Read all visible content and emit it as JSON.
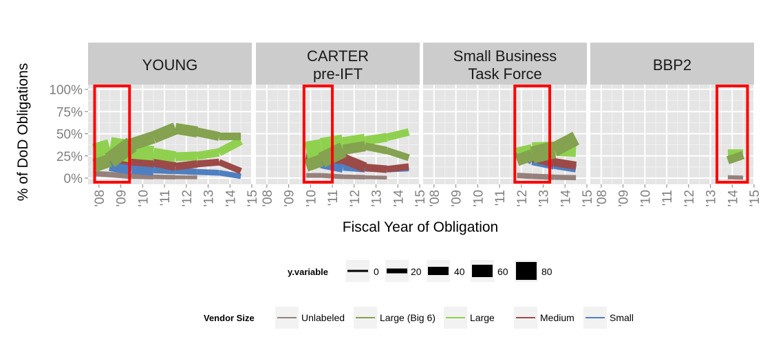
{
  "chart_data": {
    "type": "line",
    "ylabel": "% of DoD Obligations",
    "xlabel": "Fiscal Year of Obligation",
    "ylim": [
      0,
      1
    ],
    "y_ticks": [
      0,
      0.25,
      0.5,
      0.75,
      1
    ],
    "y_tick_labels": [
      "0%",
      "25%",
      "50%",
      "75%",
      "100%"
    ],
    "x_range": [
      2007.5,
      2015
    ],
    "x_ticks": [
      2008,
      2009,
      2010,
      2011,
      2012,
      2013,
      2014,
      2015
    ],
    "x_tick_labels": [
      "'08",
      "'09",
      "'10",
      "'11",
      "'12",
      "'13",
      "'14",
      "'15"
    ],
    "grid": true,
    "colors": {
      "Unlabeled": "#96807b",
      "Large (Big 6)": "#84a24f",
      "Large": "#8fd14f",
      "Medium": "#9c4a48",
      "Small": "#4e7fc1"
    },
    "panels": [
      {
        "strip": [
          "YOUNG"
        ],
        "highlight": [
          2007.8,
          2009.4
        ],
        "series": [
          {
            "name": "Unlabeled",
            "points": [
              [
                2007.8,
                0.05,
                8
              ],
              [
                2008.5,
                0.04,
                8
              ],
              [
                2009.5,
                0.02,
                8
              ],
              [
                2010.5,
                0.015,
                7
              ],
              [
                2011.5,
                0.01,
                6
              ],
              [
                2012.5,
                0.008,
                5
              ]
            ]
          },
          {
            "name": "Small",
            "points": [
              [
                2008.5,
                0.15,
                15
              ],
              [
                2009.5,
                0.11,
                22
              ],
              [
                2010.5,
                0.09,
                10
              ],
              [
                2011.5,
                0.08,
                9
              ],
              [
                2012.5,
                0.07,
                9
              ],
              [
                2013.5,
                0.06,
                8
              ],
              [
                2014.5,
                0.02,
                8
              ]
            ]
          },
          {
            "name": "Medium",
            "points": [
              [
                2007.8,
                0.25,
                14
              ],
              [
                2008.5,
                0.24,
                14
              ],
              [
                2009.5,
                0.2,
                16
              ],
              [
                2010.5,
                0.18,
                14
              ],
              [
                2011.5,
                0.13,
                12
              ],
              [
                2012.5,
                0.16,
                10
              ],
              [
                2013.5,
                0.18,
                10
              ],
              [
                2014.5,
                0.08,
                8
              ]
            ]
          },
          {
            "name": "Large",
            "points": [
              [
                2007.8,
                0.29,
                12
              ],
              [
                2008.5,
                0.34,
                40
              ],
              [
                2009.5,
                0.3,
                24
              ],
              [
                2010.5,
                0.28,
                18
              ],
              [
                2011.5,
                0.24,
                14
              ],
              [
                2012.5,
                0.25,
                12
              ],
              [
                2013.5,
                0.29,
                12
              ],
              [
                2014.5,
                0.42,
                12
              ]
            ]
          },
          {
            "name": "Large (Big 6)",
            "points": [
              [
                2007.8,
                0.14,
                8
              ],
              [
                2008.5,
                0.2,
                30
              ],
              [
                2009.5,
                0.38,
                18
              ],
              [
                2010.5,
                0.46,
                18
              ],
              [
                2011.5,
                0.56,
                18
              ],
              [
                2012.5,
                0.52,
                14
              ],
              [
                2013.5,
                0.47,
                12
              ],
              [
                2014.5,
                0.47,
                10
              ]
            ]
          }
        ]
      },
      {
        "strip": [
          "CARTER",
          "pre-IFT"
        ],
        "highlight": [
          2009.7,
          2011.0
        ],
        "series": [
          {
            "name": "Unlabeled",
            "points": [
              [
                2009.8,
                0.03,
                7
              ],
              [
                2010.5,
                0.03,
                7
              ],
              [
                2011.5,
                0.015,
                7
              ],
              [
                2012.5,
                0.01,
                6
              ],
              [
                2013.5,
                0.005,
                5
              ]
            ]
          },
          {
            "name": "Small",
            "points": [
              [
                2009.8,
                0.24,
                10
              ],
              [
                2010.5,
                0.18,
                22
              ],
              [
                2011.5,
                0.13,
                14
              ],
              [
                2012.5,
                0.11,
                10
              ],
              [
                2013.5,
                0.1,
                9
              ],
              [
                2014.5,
                0.11,
                9
              ]
            ]
          },
          {
            "name": "Medium",
            "points": [
              [
                2009.8,
                0.26,
                14
              ],
              [
                2010.5,
                0.24,
                14
              ],
              [
                2011.5,
                0.22,
                18
              ],
              [
                2012.5,
                0.12,
                12
              ],
              [
                2013.5,
                0.1,
                10
              ],
              [
                2014.5,
                0.13,
                9
              ]
            ]
          },
          {
            "name": "Large",
            "points": [
              [
                2009.8,
                0.31,
                22
              ],
              [
                2010.5,
                0.34,
                30
              ],
              [
                2011.5,
                0.38,
                28
              ],
              [
                2012.5,
                0.42,
                14
              ],
              [
                2013.5,
                0.46,
                12
              ],
              [
                2014.5,
                0.52,
                10
              ]
            ]
          },
          {
            "name": "Large (Big 6)",
            "points": [
              [
                2009.8,
                0.14,
                8
              ],
              [
                2010.5,
                0.2,
                28
              ],
              [
                2011.5,
                0.32,
                18
              ],
              [
                2012.5,
                0.36,
                12
              ],
              [
                2013.5,
                0.31,
                10
              ],
              [
                2014.5,
                0.23,
                10
              ]
            ]
          }
        ]
      },
      {
        "strip": [
          "Small Business",
          "Task Force"
        ],
        "highlight": [
          2011.7,
          2013.3
        ],
        "series": [
          {
            "name": "Unlabeled",
            "points": [
              [
                2011.8,
                0.03,
                8
              ],
              [
                2012.5,
                0.02,
                8
              ],
              [
                2013.5,
                0.01,
                8
              ],
              [
                2014.5,
                0.005,
                7
              ]
            ]
          },
          {
            "name": "Small",
            "points": [
              [
                2011.8,
                0.3,
                12
              ],
              [
                2012.5,
                0.2,
                14
              ],
              [
                2013.5,
                0.15,
                14
              ],
              [
                2014.5,
                0.11,
                10
              ]
            ]
          },
          {
            "name": "Medium",
            "points": [
              [
                2011.8,
                0.28,
                12
              ],
              [
                2012.5,
                0.24,
                16
              ],
              [
                2013.5,
                0.18,
                14
              ],
              [
                2014.5,
                0.14,
                10
              ]
            ]
          },
          {
            "name": "Large",
            "points": [
              [
                2011.8,
                0.27,
                16
              ],
              [
                2012.5,
                0.31,
                22
              ],
              [
                2013.5,
                0.32,
                26
              ],
              [
                2014.5,
                0.31,
                10
              ]
            ]
          },
          {
            "name": "Large (Big 6)",
            "points": [
              [
                2011.8,
                0.2,
                12
              ],
              [
                2012.5,
                0.26,
                22
              ],
              [
                2013.5,
                0.32,
                28
              ],
              [
                2014.5,
                0.45,
                14
              ]
            ]
          }
        ]
      },
      {
        "strip": [
          "BBP2"
        ],
        "highlight": [
          2013.3,
          2014.7
        ],
        "series": [
          {
            "name": "Unlabeled",
            "points": [
              [
                2013.8,
                0.01,
                6
              ],
              [
                2014.5,
                0.005,
                6
              ]
            ]
          },
          {
            "name": "Large",
            "points": [
              [
                2013.8,
                0.27,
                14
              ],
              [
                2014.5,
                0.27,
                14
              ]
            ]
          },
          {
            "name": "Large (Big 6)",
            "points": [
              [
                2013.8,
                0.2,
                12
              ],
              [
                2014.5,
                0.26,
                12
              ]
            ]
          }
        ]
      }
    ],
    "legend_size": {
      "title": "y.variable",
      "entries": [
        {
          "label": "0",
          "size": 3
        },
        {
          "label": "20",
          "size": 7
        },
        {
          "label": "40",
          "size": 12
        },
        {
          "label": "60",
          "size": 18
        },
        {
          "label": "80",
          "size": 26
        }
      ]
    },
    "legend_color": {
      "title": "Vendor Size",
      "entries": [
        "Unlabeled",
        "Large (Big 6)",
        "Large",
        "Medium",
        "Small"
      ]
    }
  }
}
